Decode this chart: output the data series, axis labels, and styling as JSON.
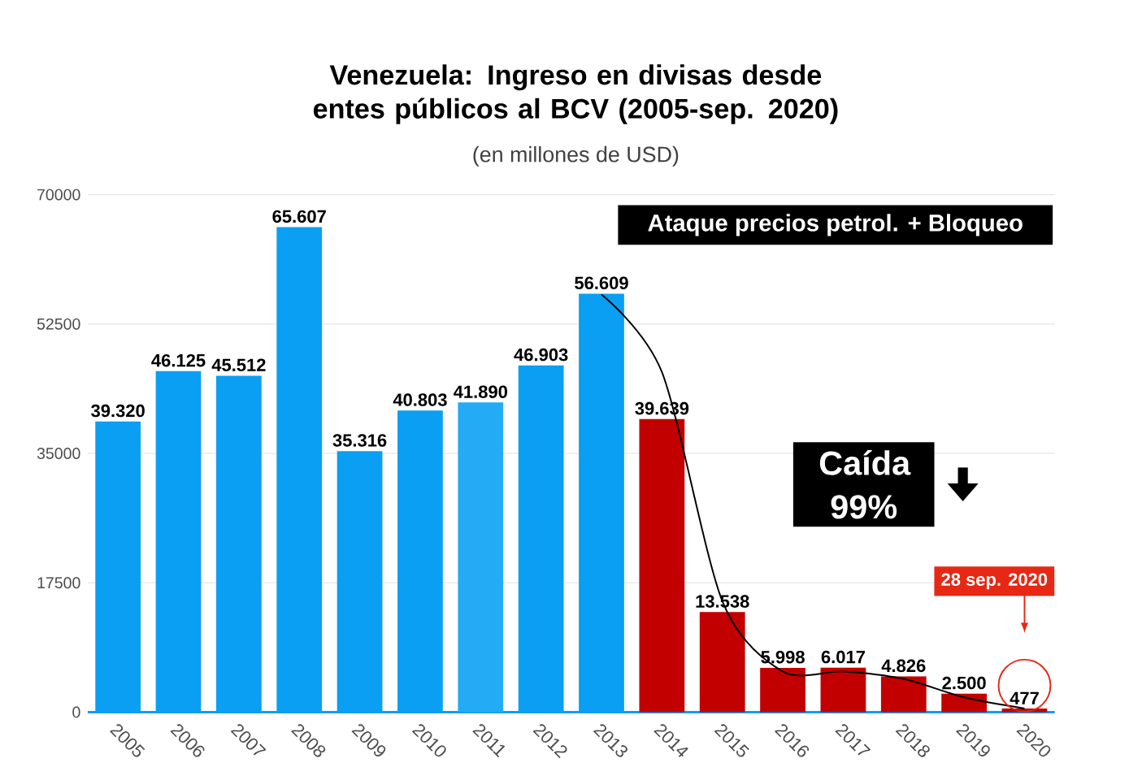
{
  "chart_data": {
    "type": "bar",
    "title": "Venezuela: Ingreso en divisas desde entes públicos al BCV  (2005-sep. 2020)",
    "subtitle": "(en millones de USD)",
    "categories": [
      "2005",
      "2006",
      "2007",
      "2008",
      "2009",
      "2010",
      "2011",
      "2012",
      "2013",
      "2014",
      "2015",
      "2016",
      "2017",
      "2018",
      "2019",
      "2020"
    ],
    "series": [
      {
        "values": [
          39320,
          46125,
          45512,
          65607,
          35316,
          40803,
          41890,
          46903,
          56609,
          39639,
          13538,
          5998,
          6017,
          4826,
          2500,
          477
        ],
        "colors": [
          "#0a9ff2",
          "#0a9ff2",
          "#0a9ff2",
          "#0a9ff2",
          "#0a9ff2",
          "#0a9ff2",
          "#24abf5",
          "#0a9ff2",
          "#0a9ff2",
          "#c20000",
          "#c20000",
          "#c20000",
          "#c20000",
          "#c20000",
          "#c20000",
          "#c20000"
        ],
        "value_labels": [
          "39.320",
          "46.125",
          "45.512",
          "65.607",
          "35.316",
          "40.803",
          "41.890",
          "46.903",
          "56.609",
          "39.639",
          "13.538",
          "5.998",
          "6.017",
          "4.826",
          "2.500",
          "477"
        ]
      },
      {
        "type": "line",
        "color": "#000000",
        "values": [
          null,
          null,
          null,
          null,
          null,
          null,
          null,
          null,
          56500,
          46000,
          15000,
          5500,
          5500,
          4500,
          2000,
          500
        ]
      }
    ],
    "ylim": [
      0,
      70000
    ],
    "yticks": [
      0,
      17500,
      35000,
      52500,
      70000
    ],
    "grid": "y",
    "annotations": [
      "Ataque precios petrol. + Bloqueo",
      "Caída 99%",
      "28 sep. 2020"
    ]
  }
}
